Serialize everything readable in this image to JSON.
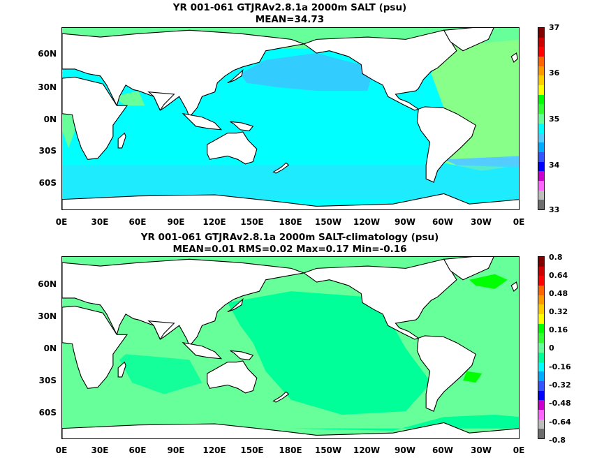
{
  "panel1": {
    "title": "YR 001-061 GTJRAv2.8.1a 2000m SALT (psu)",
    "subtitle": "MEAN=34.73",
    "colorbar_labels": [
      "37",
      "36",
      "35",
      "34",
      "33"
    ],
    "colorbar_colors": [
      "#6e6e6e",
      "#bdbdbd",
      "#ff66ff",
      "#cc00cc",
      "#0000ff",
      "#3355ff",
      "#00aaff",
      "#55ccff",
      "#00ffff",
      "#66ff99",
      "#33ff33",
      "#00ff00",
      "#ffff00",
      "#ffcc00",
      "#ff9900",
      "#ff6600",
      "#ff0000",
      "#cc0000",
      "#800000"
    ]
  },
  "panel2": {
    "title": "YR 001-061 GTJRAv2.8.1a 2000m SALT-climatology (psu)",
    "subtitle": "MEAN=0.01   RMS=0.02   Max=0.17   Min=-0.16",
    "colorbar_labels": [
      "0.8",
      "0.64",
      "0.48",
      "0.32",
      "0.16",
      "0",
      "-0.16",
      "-0.32",
      "-0.48",
      "-0.64",
      "-0.8"
    ],
    "colorbar_colors": [
      "#6e6e6e",
      "#bdbdbd",
      "#ff66ff",
      "#cc00cc",
      "#0000ff",
      "#3355ff",
      "#00aaff",
      "#00ffff",
      "#00ff99",
      "#66ff99",
      "#33ff33",
      "#00ff00",
      "#ffff00",
      "#ffcc00",
      "#ff9900",
      "#ff6600",
      "#ff0000",
      "#cc0000",
      "#800000"
    ]
  },
  "axes": {
    "lat_labels": [
      "60N",
      "30N",
      "0N",
      "30S",
      "60S"
    ],
    "lon_labels": [
      "0E",
      "30E",
      "60E",
      "90E",
      "120E",
      "150E",
      "180E",
      "150W",
      "120W",
      "90W",
      "60W",
      "30W",
      "0E"
    ]
  },
  "colors": {
    "land": "#ffffff",
    "coast": "#000000",
    "ocean1": "#00ffff",
    "ocean2": "#00ff99"
  }
}
